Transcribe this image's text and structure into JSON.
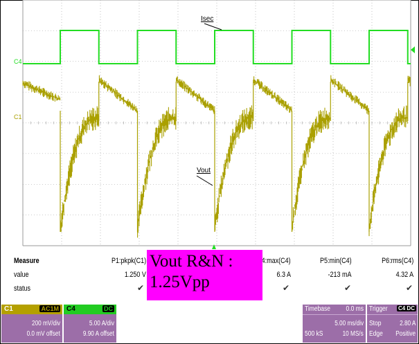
{
  "scope": {
    "channel_markers": [
      "C4",
      "C1"
    ],
    "annotations": {
      "isec": "Isec",
      "vout": "Vout"
    },
    "colors": {
      "grid_bg": "#ffffff",
      "grid": "#9a9a9a",
      "c1": "#aaa000",
      "c4": "#22dd22",
      "trigger": "#22dd22"
    }
  },
  "measurements": {
    "label": "Measure",
    "rows": [
      "value",
      "status"
    ],
    "params": [
      {
        "name": "P1:pkpk(C1)",
        "value": "1.250 V",
        "status": "✔"
      },
      {
        "name": "P4:max(C4)",
        "value": "6.3 A",
        "status": "✔"
      },
      {
        "name": "P5:min(C4)",
        "value": "-213 mA",
        "status": "✔"
      },
      {
        "name": "P6:rms(C4)",
        "value": "4.32 A",
        "status": "✔"
      }
    ]
  },
  "callout": {
    "line1": "Vout R&N :",
    "line2": "1.25Vpp"
  },
  "channel_boxes": [
    {
      "name": "C1",
      "coupling": "AC1M",
      "scale": "200 mV/div",
      "offset": "0.0 mV offset",
      "color": "#9c6ea8",
      "header_color": "#b4a000"
    },
    {
      "name": "C4",
      "coupling": "DC",
      "scale": "5.00 A/div",
      "offset": "9.90 A offset",
      "color": "#9c6ea8",
      "header_color": "#22cc22"
    }
  ],
  "timebase": {
    "label": "Timebase",
    "delay": "0.0 ms",
    "scale": "5.00 ms/div",
    "samples": "500 kS",
    "rate": "10 MS/s"
  },
  "trigger": {
    "label": "Trigger",
    "channel": "C4 DC",
    "mode": "Stop",
    "level": "2.80 A",
    "type": "Edge",
    "slope": "Positive"
  }
}
